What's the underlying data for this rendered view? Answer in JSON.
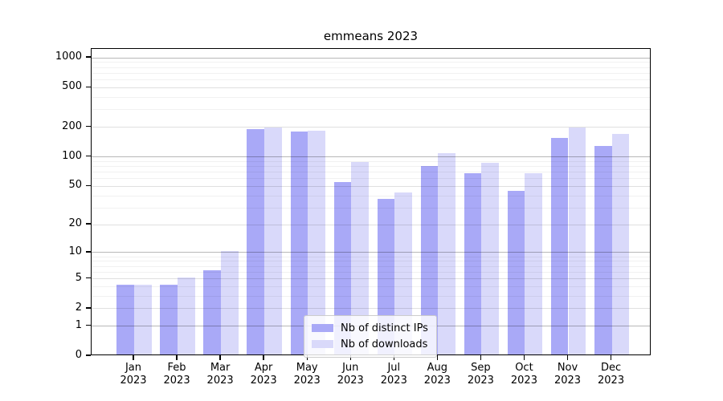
{
  "chart_data": {
    "type": "bar",
    "title": "emmeans 2023",
    "categories": [
      "Jan",
      "Feb",
      "Mar",
      "Apr",
      "May",
      "Jun",
      "Jul",
      "Aug",
      "Sep",
      "Oct",
      "Nov",
      "Dec"
    ],
    "xtick_second_line": "2023",
    "series": [
      {
        "name": "Nb of distinct IPs",
        "color": "#a9a9f7",
        "values": [
          4,
          4,
          6,
          185,
          175,
          53,
          36,
          77,
          65,
          43,
          151,
          125
        ]
      },
      {
        "name": "Nb of downloads",
        "color": "#d9d9fa",
        "values": [
          4,
          5,
          10,
          192,
          178,
          85,
          42,
          104,
          83,
          66,
          190,
          163
        ]
      }
    ],
    "ylabel": "",
    "xlabel": "",
    "yscale": "log1p",
    "ylim": [
      0,
      1229
    ],
    "yticks": [
      0,
      1,
      2,
      5,
      10,
      20,
      50,
      100,
      200,
      500,
      1000
    ],
    "minor_gridlines": [
      3,
      4,
      6,
      7,
      8,
      9,
      30,
      40,
      60,
      70,
      80,
      90,
      300,
      400,
      600,
      700,
      800,
      900
    ],
    "grid": "horizontal only",
    "legend_position": "lower center"
  }
}
